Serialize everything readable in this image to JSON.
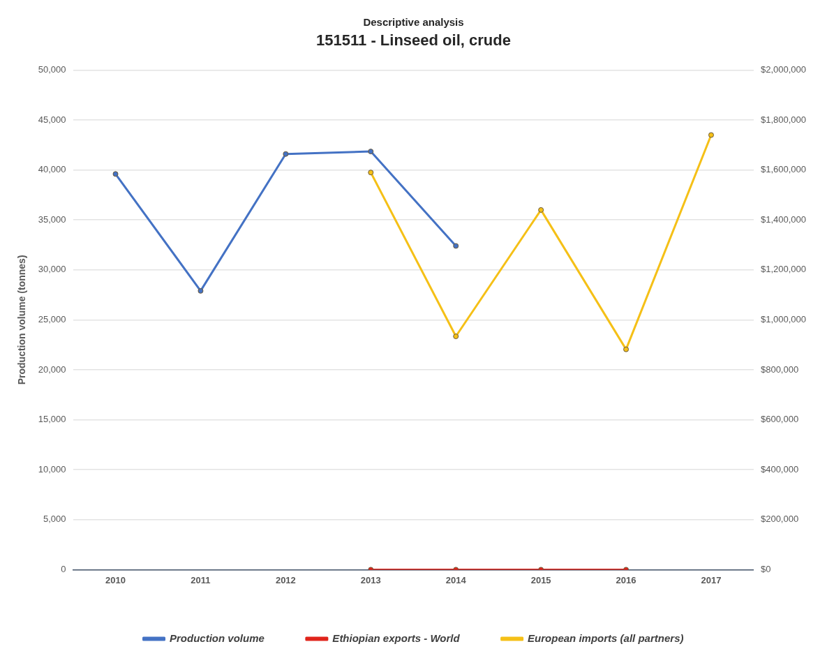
{
  "chart_data": {
    "type": "line",
    "title": "Descriptive analysis",
    "subtitle": "151511 - Linseed oil, crude",
    "ylabel": "Production volume (tonnes)",
    "categories": [
      "2010",
      "2011",
      "2012",
      "2013",
      "2014",
      "2015",
      "2016",
      "2017"
    ],
    "series": [
      {
        "name": "Production volume",
        "color": "#4472c4",
        "values": [
          39600,
          27900,
          41600,
          41850,
          32400,
          null,
          null,
          null
        ]
      },
      {
        "name": "Ethiopian exports - World",
        "color": "#e0241b",
        "axis": "y2",
        "values": [
          null,
          null,
          null,
          0,
          0,
          0,
          0,
          null
        ]
      },
      {
        "name": "European imports (all partners)",
        "color": "#f5c017",
        "axis": "y2",
        "values": [
          null,
          null,
          null,
          1590000,
          934000,
          1440000,
          882000,
          1740000
        ]
      }
    ],
    "ylim": [
      0,
      50000
    ],
    "yticks": [
      {
        "value": 0,
        "label": "0"
      },
      {
        "value": 5000,
        "label": "5,000"
      },
      {
        "value": 10000,
        "label": "10,000"
      },
      {
        "value": 15000,
        "label": "15,000"
      },
      {
        "value": 20000,
        "label": "20,000"
      },
      {
        "value": 25000,
        "label": "25,000"
      },
      {
        "value": 30000,
        "label": "30,000"
      },
      {
        "value": 35000,
        "label": "35,000"
      },
      {
        "value": 40000,
        "label": "40,000"
      },
      {
        "value": 45000,
        "label": "45,000"
      },
      {
        "value": 50000,
        "label": "50,000"
      }
    ],
    "y2lim": [
      0,
      2000000
    ],
    "y2ticks": [
      {
        "value": 0,
        "label": "$0"
      },
      {
        "value": 200000,
        "label": "$200,000"
      },
      {
        "value": 400000,
        "label": "$400,000"
      },
      {
        "value": 600000,
        "label": "$600,000"
      },
      {
        "value": 800000,
        "label": "$800,000"
      },
      {
        "value": 1000000,
        "label": "$1,000,000"
      },
      {
        "value": 1200000,
        "label": "$1,200,000"
      },
      {
        "value": 1400000,
        "label": "$1,400,000"
      },
      {
        "value": 1600000,
        "label": "$1,600,000"
      },
      {
        "value": 1800000,
        "label": "$1,800,000"
      },
      {
        "value": 2000000,
        "label": "$2,000,000"
      }
    ],
    "grid": "y",
    "legend": "bottom",
    "marker": "circle",
    "line_style": "solid"
  }
}
